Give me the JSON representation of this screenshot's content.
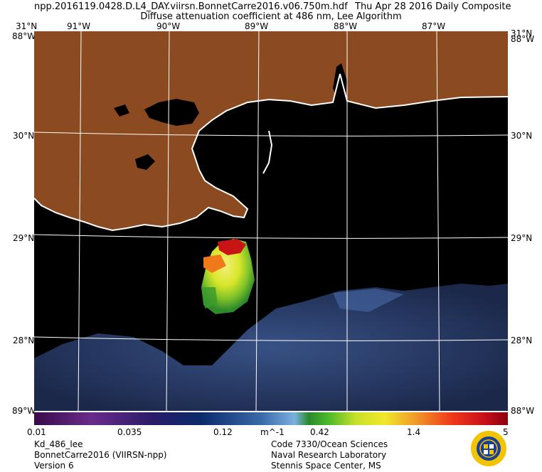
{
  "header": {
    "filename": "npp.2016119.0428.D.L4_DAY.viirsn.BonnetCarre2016.v06.750m.hdf",
    "date_label": "Thu Apr 28 2016 Daily Composite",
    "subtitle": "Diffuse attenuation coefficient at 486 nm, Lee Algorithm"
  },
  "map": {
    "lon_labels": [
      "91°W",
      "90°W",
      "89°W",
      "88°W",
      "87°W"
    ],
    "lat_labels": [
      "30°N",
      "29°N",
      "28°N"
    ],
    "corner_labels": {
      "top_left": "31°N",
      "top_left_side": "88°W",
      "top_right": "31°N",
      "top_right_side": "88°W",
      "bottom_left": "89°W",
      "bottom_right": "88°W"
    },
    "colors": {
      "land": "#8b4a20",
      "water": "#000000",
      "coast": "#ffffff",
      "grid": "#ffffff"
    }
  },
  "colorbar": {
    "ticks": [
      "0.01",
      "0.035",
      "0.12",
      "m^-1",
      "0.42",
      "1.4",
      "5"
    ]
  },
  "footer": {
    "left": [
      "Kd_486_lee",
      "BonnetCarre2016 (VIIRSN-npp)",
      "Version 6"
    ],
    "right": [
      "Code 7330/Ocean Sciences",
      "Naval Research Laboratory",
      "Stennis Space Center, MS"
    ]
  },
  "logo": {
    "icon": "nrl-seal-icon"
  }
}
